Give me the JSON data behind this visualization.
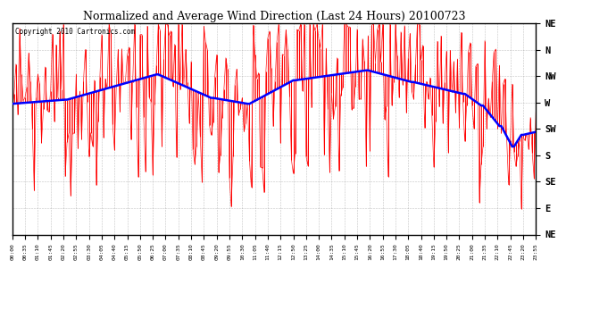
{
  "title": "Normalized and Average Wind Direction (Last 24 Hours) 20100723",
  "copyright": "Copyright 2010 Cartronics.com",
  "background_color": "#ffffff",
  "plot_bg_color": "#ffffff",
  "ymin": 45,
  "ymax": 405,
  "grid_color": "#999999",
  "line_color_raw": "#ff0000",
  "line_color_avg": "#0000ff",
  "ytick_positions": [
    405,
    360,
    315,
    270,
    225,
    180,
    135,
    90,
    45
  ],
  "ytick_labels": [
    "NE",
    "N",
    "NW",
    "W",
    "SW",
    "S",
    "SE",
    "E",
    "NE"
  ],
  "fig_width": 6.9,
  "fig_height": 3.75,
  "dpi": 100
}
